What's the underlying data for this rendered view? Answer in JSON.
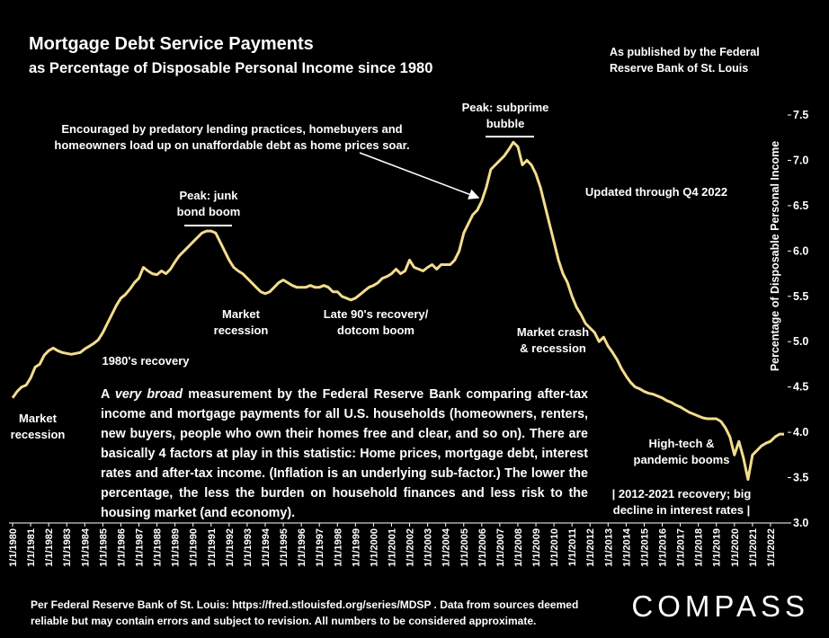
{
  "chart_data": {
    "type": "line",
    "title": "Mortgage Debt Service Payments",
    "subtitle": "as Percentage of Disposable Personal Income since 1980",
    "publisher": [
      "As published by the Federal",
      "Reserve Bank of St. Louis"
    ],
    "y_label": "Percentage of Disposable Personal Income",
    "color": "#f3dc8e",
    "ylim": [
      3.0,
      7.5
    ],
    "yticks": [
      7.5,
      {
        "value": 7.0,
        "label": "7.0"
      },
      6.5,
      {
        "value": 6.0,
        "label": "6.0"
      },
      5.5,
      {
        "value": 5.0,
        "label": "5.0"
      },
      4.5,
      {
        "value": 4.0,
        "label": "4.0"
      },
      3.5,
      {
        "value": 3.0,
        "label": "3.0"
      }
    ],
    "categories": [
      "1/1/1980",
      null,
      null,
      null,
      "1/1/1981",
      null,
      null,
      null,
      "1/1/1982",
      null,
      null,
      null,
      "1/1/1983",
      null,
      null,
      null,
      "1/1/1984",
      null,
      null,
      null,
      "1/1/1985",
      null,
      null,
      null,
      "1/1/1986",
      null,
      null,
      null,
      "1/1/1987",
      null,
      null,
      null,
      "1/1/1988",
      null,
      null,
      null,
      "1/1/1989",
      null,
      null,
      null,
      "1/1/1990",
      null,
      null,
      null,
      "1/1/1991",
      null,
      null,
      null,
      "1/1/1992",
      null,
      null,
      null,
      "1/1/1993",
      null,
      null,
      null,
      "1/1/1994",
      null,
      null,
      null,
      "1/1/1995",
      null,
      null,
      null,
      "1/1/1996",
      null,
      null,
      null,
      "1/1/1997",
      null,
      null,
      null,
      "1/1/1998",
      null,
      null,
      null,
      "1/1/1999",
      null,
      null,
      null,
      "1/1/2000",
      null,
      null,
      null,
      "1/1/2001",
      null,
      null,
      null,
      "1/1/2002",
      null,
      null,
      null,
      "1/1/2003",
      null,
      null,
      null,
      "1/1/2004",
      null,
      null,
      null,
      "1/1/2005",
      null,
      null,
      null,
      "1/1/2006",
      null,
      null,
      null,
      "1/1/2007",
      null,
      null,
      null,
      "1/1/2008",
      null,
      null,
      null,
      "1/1/2009",
      null,
      null,
      null,
      "1/1/2010",
      null,
      null,
      null,
      "1/1/2011",
      null,
      null,
      null,
      "1/1/2012",
      null,
      null,
      null,
      "1/1/2013",
      null,
      null,
      null,
      "1/1/2014",
      null,
      null,
      null,
      "1/1/2015",
      null,
      null,
      null,
      "1/1/2016",
      null,
      null,
      null,
      "1/1/2017",
      null,
      null,
      null,
      "1/1/2018",
      null,
      null,
      null,
      "1/1/2019",
      null,
      null,
      null,
      "1/1/2020",
      null,
      null,
      null,
      "1/1/2021",
      null,
      null,
      null,
      "1/1/2022",
      null,
      null,
      null
    ],
    "values": [
      4.38,
      4.45,
      4.5,
      4.52,
      4.6,
      4.72,
      4.75,
      4.85,
      4.9,
      4.93,
      4.9,
      4.88,
      4.87,
      4.86,
      4.87,
      4.88,
      4.92,
      4.95,
      4.98,
      5.02,
      5.1,
      5.2,
      5.3,
      5.4,
      5.48,
      5.52,
      5.58,
      5.65,
      5.7,
      5.82,
      5.78,
      5.75,
      5.74,
      5.78,
      5.75,
      5.8,
      5.88,
      5.95,
      6.0,
      6.05,
      6.1,
      6.15,
      6.2,
      6.22,
      6.22,
      6.2,
      6.1,
      6.0,
      5.9,
      5.82,
      5.78,
      5.75,
      5.7,
      5.65,
      5.6,
      5.55,
      5.53,
      5.55,
      5.6,
      5.65,
      5.68,
      5.65,
      5.62,
      5.6,
      5.6,
      5.6,
      5.62,
      5.6,
      5.6,
      5.62,
      5.6,
      5.55,
      5.55,
      5.5,
      5.48,
      5.46,
      5.48,
      5.52,
      5.56,
      5.6,
      5.62,
      5.65,
      5.7,
      5.72,
      5.75,
      5.8,
      5.75,
      5.78,
      5.9,
      5.82,
      5.8,
      5.78,
      5.82,
      5.85,
      5.8,
      5.85,
      5.85,
      5.85,
      5.9,
      6.0,
      6.2,
      6.3,
      6.4,
      6.45,
      6.55,
      6.7,
      6.9,
      6.95,
      7.0,
      7.05,
      7.12,
      7.2,
      7.15,
      6.95,
      7.0,
      6.95,
      6.85,
      6.7,
      6.5,
      6.3,
      6.1,
      5.9,
      5.75,
      5.65,
      5.5,
      5.38,
      5.3,
      5.2,
      5.15,
      5.1,
      5.0,
      5.05,
      4.95,
      4.88,
      4.8,
      4.7,
      4.62,
      4.55,
      4.5,
      4.48,
      4.45,
      4.43,
      4.42,
      4.4,
      4.38,
      4.35,
      4.33,
      4.3,
      4.28,
      4.25,
      4.22,
      4.2,
      4.18,
      4.16,
      4.15,
      4.15,
      4.15,
      4.12,
      4.05,
      3.95,
      3.75,
      3.9,
      3.72,
      3.48,
      3.75,
      3.8,
      3.85,
      3.88,
      3.9,
      3.95,
      3.98,
      3.98
    ],
    "annotations": [
      {
        "lines": [
          "Encouraged by predatory lending practices, homebuyers and",
          "homeowners load up on unaffordable debt as home prices soar."
        ]
      },
      {
        "lines": [
          "Peak: subprime",
          "bubble"
        ]
      },
      {
        "lines": [
          "Updated through Q4 2022"
        ]
      },
      {
        "lines": [
          "Peak: junk",
          "bond boom"
        ]
      },
      {
        "lines": [
          "Market",
          "recession"
        ]
      },
      {
        "lines": [
          "Late 90's recovery/",
          "dotcom boom"
        ]
      },
      {
        "lines": [
          "Market crash",
          "& recession"
        ]
      },
      {
        "lines": [
          "1980's recovery"
        ]
      },
      {
        "lines": [
          "Market",
          "recession"
        ]
      },
      {
        "lines": [
          "High-tech &",
          "pandemic booms"
        ]
      },
      {
        "lines": [
          "|  2012-2021 recovery; big",
          "decline in interest rates  |"
        ]
      }
    ],
    "description": [
      "A ",
      "very broad",
      " measurement by the Federal Reserve Bank comparing after-tax income and mortgage payments for all U.S. households (homeowners, renters, new buyers, people who own their homes free and clear, and so on). There are basically 4 factors at play in this statistic: Home prices, mortgage debt, interest rates and after-tax income. (Inflation is an underlying sub-factor.) The lower the percentage, the less the burden on household finances and less risk to the housing market (and economy)."
    ],
    "source": [
      "Per Federal Reserve Bank of St. Louis: https://fred.stlouisfed.org/series/MDSP . Data from sources deemed",
      "reliable but may contain errors and subject to revision. All numbers to be considered approximate."
    ],
    "logo": "COMPASS"
  }
}
